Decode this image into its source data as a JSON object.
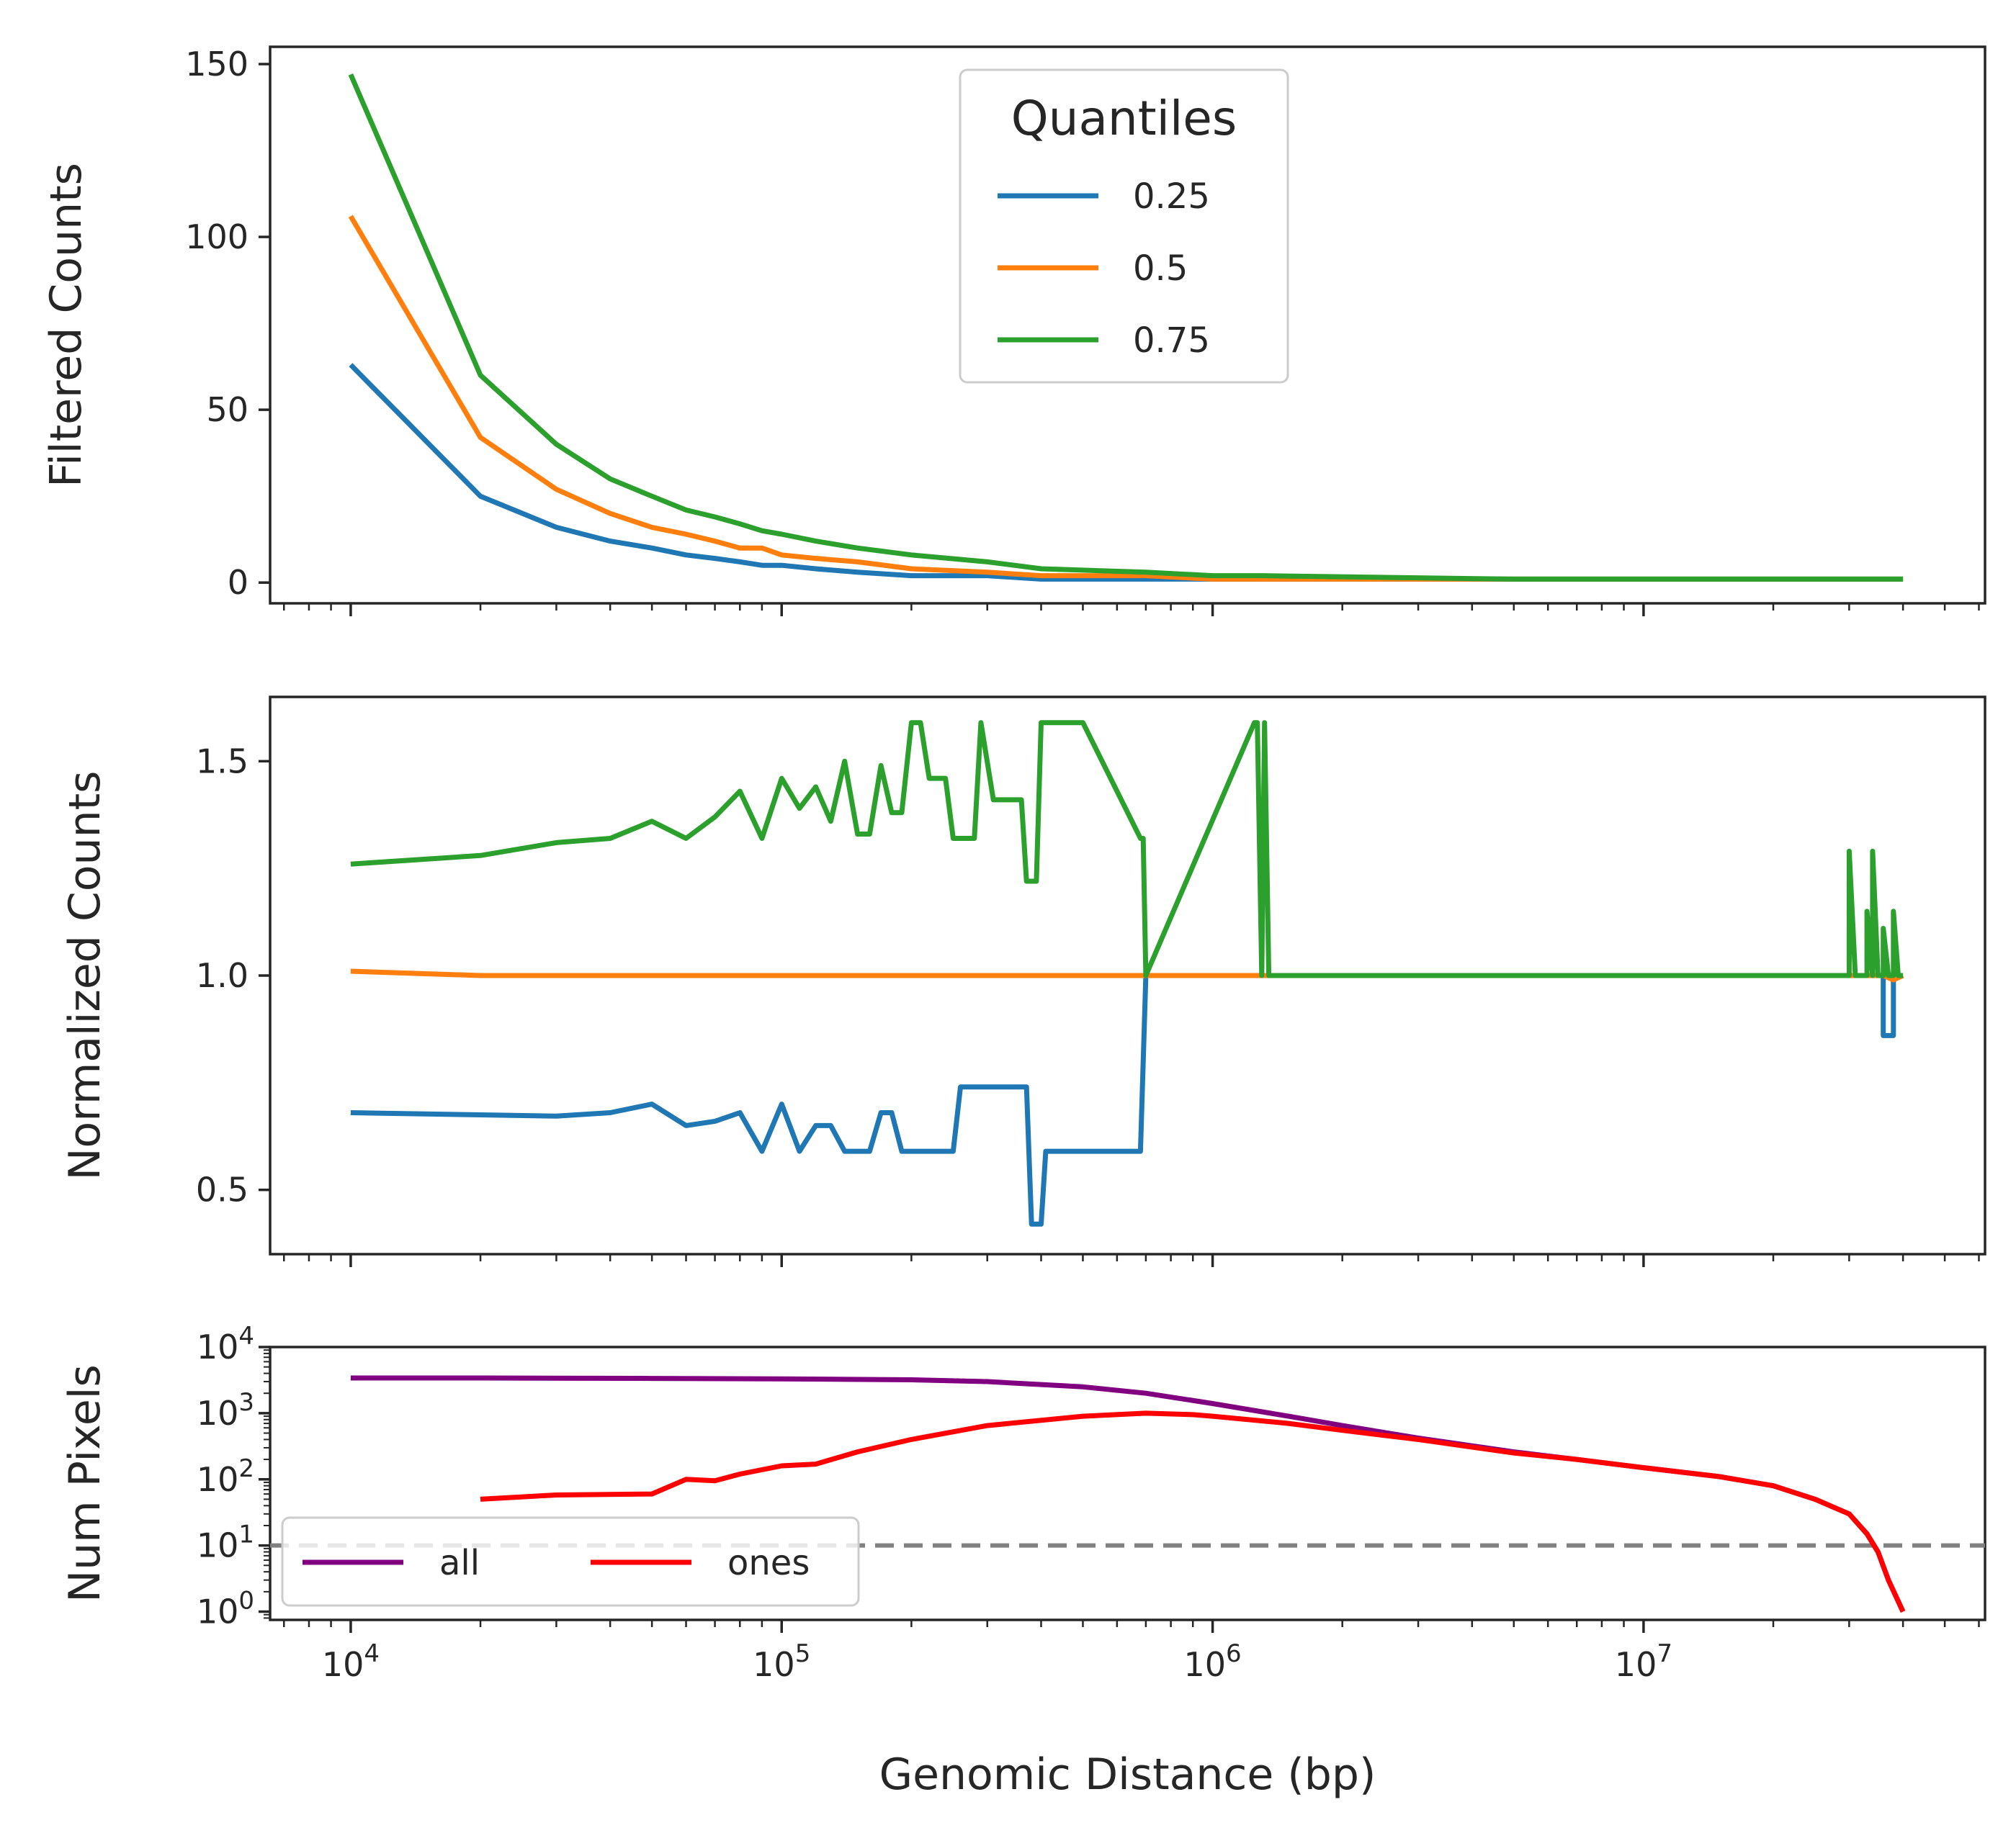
{
  "chart_data": [
    {
      "type": "line",
      "ylabel": "Filtered Counts",
      "xscale": "log",
      "xlim": [
        6500,
        62000000
      ],
      "ylim": [
        -6,
        155
      ],
      "yticks": [
        0,
        50,
        100,
        150
      ],
      "legend": {
        "title": "Quantiles",
        "placement": "top-center"
      },
      "series": [
        {
          "name": "0.25",
          "color": "#1f77b4",
          "x": [
            10000,
            20000,
            30000,
            40000,
            50000,
            60000,
            70000,
            80000,
            90000,
            100000,
            120000,
            150000,
            200000,
            300000,
            400000,
            700000,
            1000000,
            5000000,
            10000000,
            40000000
          ],
          "y": [
            63,
            25,
            16,
            12,
            10,
            8,
            7,
            6,
            5,
            5,
            4,
            3,
            2,
            2,
            1,
            1,
            1,
            1,
            1,
            1
          ]
        },
        {
          "name": "0.5",
          "color": "#ff7f0e",
          "x": [
            10000,
            20000,
            30000,
            40000,
            50000,
            60000,
            70000,
            80000,
            90000,
            100000,
            120000,
            150000,
            200000,
            300000,
            400000,
            700000,
            1000000,
            5000000,
            10000000,
            40000000
          ],
          "y": [
            106,
            42,
            27,
            20,
            16,
            14,
            12,
            10,
            10,
            8,
            7,
            6,
            4,
            3,
            2,
            2,
            1,
            1,
            1,
            1
          ]
        },
        {
          "name": "0.75",
          "color": "#2ca02c",
          "x": [
            10000,
            20000,
            30000,
            40000,
            50000,
            60000,
            70000,
            80000,
            90000,
            100000,
            120000,
            150000,
            200000,
            300000,
            400000,
            700000,
            1000000,
            1300000,
            5000000,
            10000000,
            40000000
          ],
          "y": [
            147,
            60,
            40,
            30,
            25,
            21,
            19,
            17,
            15,
            14,
            12,
            10,
            8,
            6,
            4,
            3,
            2,
            2,
            1,
            1,
            1
          ]
        }
      ]
    },
    {
      "type": "line",
      "ylabel": "Normalized Counts",
      "xscale": "log",
      "xlim": [
        6500,
        62000000
      ],
      "ylim": [
        0.35,
        1.65
      ],
      "yticks": [
        0.5,
        1.0,
        1.5
      ],
      "ytick_labels": [
        "0.5",
        "1.0",
        "1.5"
      ],
      "series": [
        {
          "name": "0.25",
          "color": "#1f77b4",
          "x": [
            10000,
            20000,
            30000,
            40000,
            50000,
            60000,
            70000,
            80000,
            90000,
            100000,
            110000,
            120000,
            130000,
            140000,
            150000,
            160000,
            170000,
            180000,
            190000,
            200000,
            250000,
            260000,
            370000,
            380000,
            400000,
            410000,
            680000,
            700000,
            36000000,
            36000000,
            38000000,
            38000000,
            40000000
          ],
          "y": [
            0.68,
            0.675,
            0.672,
            0.68,
            0.7,
            0.65,
            0.66,
            0.68,
            0.59,
            0.7,
            0.59,
            0.65,
            0.65,
            0.59,
            0.59,
            0.59,
            0.68,
            0.68,
            0.59,
            0.59,
            0.59,
            0.74,
            0.74,
            0.42,
            0.42,
            0.59,
            0.59,
            1.0,
            1.0,
            0.86,
            0.86,
            1.0,
            1.0
          ]
        },
        {
          "name": "0.5",
          "color": "#ff7f0e",
          "x": [
            10000,
            20000,
            1300000,
            36000000,
            38000000,
            40000000
          ],
          "y": [
            1.01,
            1.0,
            1.0,
            1.0,
            0.99,
            1.0
          ]
        },
        {
          "name": "0.75",
          "color": "#2ca02c",
          "x": [
            10000,
            20000,
            30000,
            40000,
            50000,
            60000,
            70000,
            80000,
            90000,
            100000,
            110000,
            120000,
            130000,
            140000,
            150000,
            160000,
            170000,
            180000,
            190000,
            200000,
            210000,
            220000,
            240000,
            250000,
            280000,
            290000,
            310000,
            360000,
            370000,
            390000,
            400000,
            500000,
            680000,
            690000,
            700000,
            1250000,
            1270000,
            1300000,
            1320000,
            1350000,
            30000000,
            30000000,
            31000000,
            33000000,
            33000000,
            34000000,
            34000000,
            35000000,
            36000000,
            36000000,
            37000000,
            38000000,
            38000000,
            39000000,
            40000000
          ],
          "y": [
            1.26,
            1.28,
            1.31,
            1.32,
            1.36,
            1.32,
            1.37,
            1.43,
            1.32,
            1.46,
            1.39,
            1.44,
            1.36,
            1.5,
            1.33,
            1.33,
            1.49,
            1.38,
            1.38,
            1.59,
            1.59,
            1.46,
            1.46,
            1.32,
            1.32,
            1.59,
            1.41,
            1.41,
            1.22,
            1.22,
            1.59,
            1.59,
            1.32,
            1.32,
            1.0,
            1.59,
            1.59,
            1.0,
            1.59,
            1.0,
            1.0,
            1.29,
            1.0,
            1.0,
            1.15,
            1.0,
            1.29,
            1.0,
            1.0,
            1.11,
            1.0,
            1.0,
            1.15,
            1.0,
            1.0
          ]
        }
      ]
    },
    {
      "type": "line",
      "ylabel": "Num Pixels",
      "xlabel": "Genomic Distance (bp)",
      "xscale": "log",
      "yscale": "log",
      "xlim": [
        6500,
        62000000
      ],
      "ylim": [
        0.75,
        10000
      ],
      "xticks": [
        "10^4",
        "10^5",
        "10^6",
        "10^7"
      ],
      "yticks": [
        "10^0",
        "10^1",
        "10^2",
        "10^3",
        "10^4"
      ],
      "hline": {
        "y": 10,
        "style": "dashed",
        "color": "#808080"
      },
      "legend": {
        "placement": "lower-left",
        "columns": 2
      },
      "series": [
        {
          "name": "all",
          "color": "#800080",
          "x": [
            10000,
            20000,
            50000,
            100000,
            200000,
            300000,
            500000,
            700000,
            1000000,
            1500000,
            2000000,
            3000000,
            5000000,
            7000000,
            10000000,
            15000000,
            20000000,
            25000000,
            30000000,
            33000000,
            35000000,
            37000000,
            40000000
          ],
          "y": [
            3400,
            3400,
            3350,
            3300,
            3200,
            3000,
            2500,
            2000,
            1400,
            900,
            650,
            420,
            260,
            200,
            150,
            110,
            80,
            50,
            30,
            15,
            8,
            3,
            1
          ]
        },
        {
          "name": "ones",
          "color": "#ff0000",
          "x": [
            20000,
            30000,
            50000,
            60000,
            70000,
            80000,
            100000,
            120000,
            150000,
            200000,
            300000,
            500000,
            700000,
            900000,
            1000000,
            1500000,
            2000000,
            3000000,
            5000000,
            7000000,
            10000000,
            15000000,
            20000000,
            25000000,
            30000000,
            33000000,
            35000000,
            37000000,
            40000000
          ],
          "y": [
            50,
            58,
            60,
            100,
            95,
            120,
            160,
            170,
            260,
            400,
            650,
            900,
            1000,
            950,
            900,
            700,
            550,
            400,
            250,
            200,
            150,
            110,
            80,
            50,
            30,
            15,
            8,
            3,
            1
          ]
        }
      ]
    }
  ]
}
